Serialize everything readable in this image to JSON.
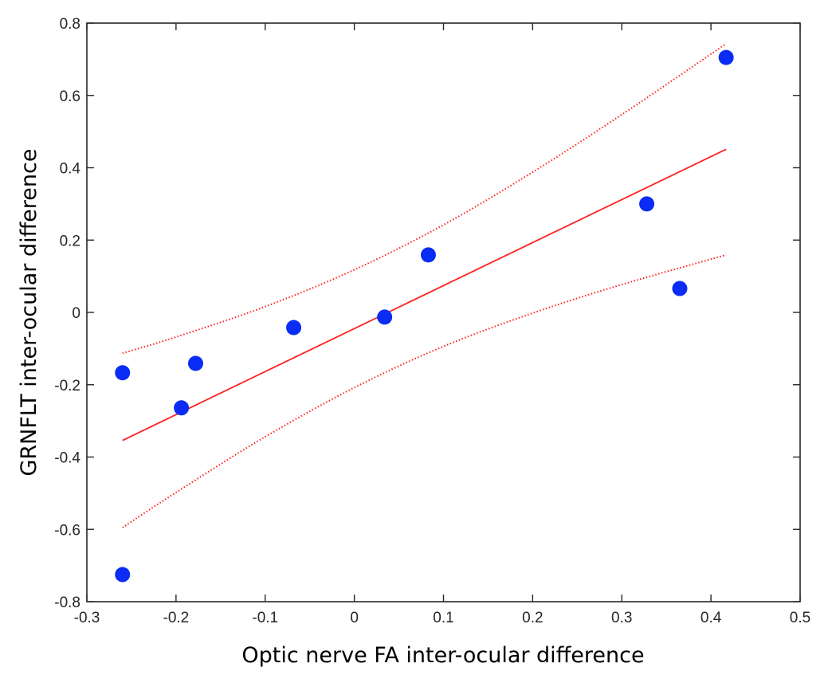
{
  "chart_data": {
    "type": "scatter",
    "title": "",
    "xlabel": "Optic nerve FA inter-ocular difference",
    "ylabel": "GRNFLT inter-ocular difference",
    "xlim": [
      -0.3,
      0.5
    ],
    "ylim": [
      -0.8,
      0.8
    ],
    "xticks": [
      "-0.3",
      "-0.2",
      "-0.1",
      "0",
      "0.1",
      "0.2",
      "0.3",
      "0.4",
      "0.5"
    ],
    "yticks": [
      "-0.8",
      "-0.6",
      "-0.4",
      "-0.2",
      "0",
      "0.2",
      "0.4",
      "0.6",
      "0.8"
    ],
    "grid": false,
    "points": {
      "color": "#0a2cf5",
      "x": [
        -0.26,
        -0.26,
        -0.194,
        -0.178,
        -0.068,
        0.034,
        0.083,
        0.328,
        0.365,
        0.417
      ],
      "y": [
        -0.167,
        -0.725,
        -0.264,
        -0.141,
        -0.042,
        -0.013,
        0.159,
        0.3,
        0.066,
        0.705
      ]
    },
    "fit_line": {
      "color": "#ff2020",
      "style": "solid",
      "x": [
        -0.26,
        0.417
      ],
      "y": [
        -0.354,
        0.451
      ]
    },
    "confidence_bands": {
      "color": "#ff2020",
      "style": "dotted",
      "x": [
        -0.26,
        -0.2,
        -0.1,
        0,
        0.1,
        0.2,
        0.3,
        0.417
      ],
      "upper": [
        -0.113,
        -0.068,
        0.016,
        0.118,
        0.242,
        0.388,
        0.547,
        0.743
      ],
      "lower": [
        -0.595,
        -0.498,
        -0.344,
        -0.208,
        -0.094,
        -0.002,
        0.077,
        0.159
      ]
    }
  }
}
